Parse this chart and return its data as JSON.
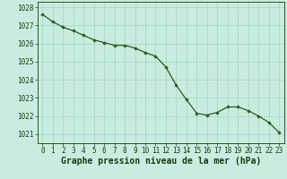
{
  "x": [
    0,
    1,
    2,
    3,
    4,
    5,
    6,
    7,
    8,
    9,
    10,
    11,
    12,
    13,
    14,
    15,
    16,
    17,
    18,
    19,
    20,
    21,
    22,
    23
  ],
  "y": [
    1027.6,
    1027.2,
    1026.9,
    1026.7,
    1026.45,
    1026.2,
    1026.05,
    1025.9,
    1025.9,
    1025.75,
    1025.5,
    1025.3,
    1024.7,
    1023.7,
    1022.9,
    1022.15,
    1022.05,
    1022.2,
    1022.5,
    1022.5,
    1022.3,
    1022.0,
    1021.65,
    1021.1
  ],
  "line_color": "#2d5a1b",
  "marker_color": "#2d5a1b",
  "bg_color": "#c8ede0",
  "grid_color": "#a0d4c0",
  "xlabel": "Graphe pression niveau de la mer (hPa)",
  "xlabel_color": "#1a3a10",
  "ylim": [
    1020.5,
    1028.3
  ],
  "yticks": [
    1021,
    1022,
    1023,
    1024,
    1025,
    1026,
    1027,
    1028
  ],
  "xticks": [
    0,
    1,
    2,
    3,
    4,
    5,
    6,
    7,
    8,
    9,
    10,
    11,
    12,
    13,
    14,
    15,
    16,
    17,
    18,
    19,
    20,
    21,
    22,
    23
  ],
  "tick_label_fontsize": 5.5,
  "xlabel_fontsize": 7.0,
  "title": ""
}
